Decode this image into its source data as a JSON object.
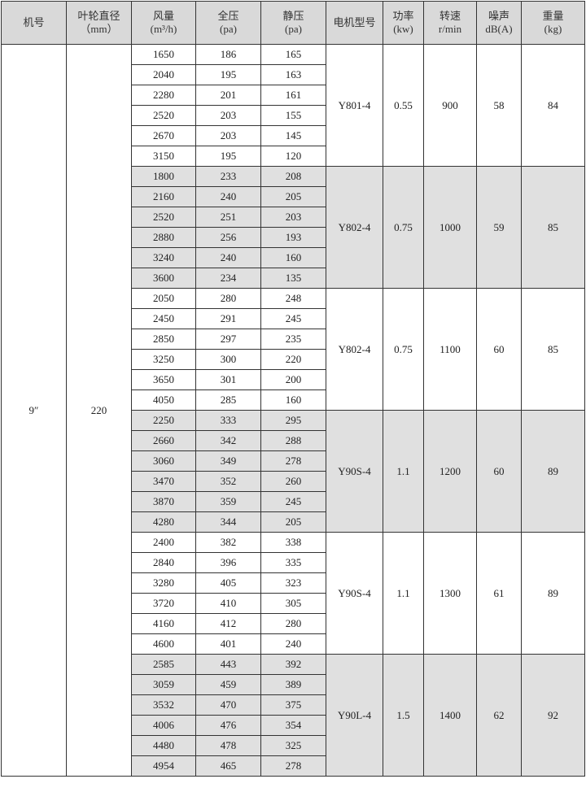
{
  "headers": [
    {
      "l1": "机号",
      "l2": ""
    },
    {
      "l1": "叶轮直径",
      "l2": "（mm）"
    },
    {
      "l1": "风量",
      "l2": "(m³/h)"
    },
    {
      "l1": "全压",
      "l2": "(pa)"
    },
    {
      "l1": "静压",
      "l2": "(pa)"
    },
    {
      "l1": "电机型号",
      "l2": ""
    },
    {
      "l1": "功率",
      "l2": "(kw)"
    },
    {
      "l1": "转速",
      "l2": "r/min"
    },
    {
      "l1": "噪声",
      "l2": "dB(A)"
    },
    {
      "l1": "重量",
      "l2": "(kg)"
    }
  ],
  "model": "9″",
  "diameter": "220",
  "group_shading": "#e0e0e0",
  "groups": [
    {
      "shaded": false,
      "motor": "Y801-4",
      "power": "0.55",
      "speed": "900",
      "noise": "58",
      "weight": "84",
      "rows": [
        [
          "1650",
          "186",
          "165"
        ],
        [
          "2040",
          "195",
          "163"
        ],
        [
          "2280",
          "201",
          "161"
        ],
        [
          "2520",
          "203",
          "155"
        ],
        [
          "2670",
          "203",
          "145"
        ],
        [
          "3150",
          "195",
          "120"
        ]
      ]
    },
    {
      "shaded": true,
      "motor": "Y802-4",
      "power": "0.75",
      "speed": "1000",
      "noise": "59",
      "weight": "85",
      "rows": [
        [
          "1800",
          "233",
          "208"
        ],
        [
          "2160",
          "240",
          "205"
        ],
        [
          "2520",
          "251",
          "203"
        ],
        [
          "2880",
          "256",
          "193"
        ],
        [
          "3240",
          "240",
          "160"
        ],
        [
          "3600",
          "234",
          "135"
        ]
      ]
    },
    {
      "shaded": false,
      "motor": "Y802-4",
      "power": "0.75",
      "speed": "1100",
      "noise": "60",
      "weight": "85",
      "rows": [
        [
          "2050",
          "280",
          "248"
        ],
        [
          "2450",
          "291",
          "245"
        ],
        [
          "2850",
          "297",
          "235"
        ],
        [
          "3250",
          "300",
          "220"
        ],
        [
          "3650",
          "301",
          "200"
        ],
        [
          "4050",
          "285",
          "160"
        ]
      ]
    },
    {
      "shaded": true,
      "motor": "Y90S-4",
      "power": "1.1",
      "speed": "1200",
      "noise": "60",
      "weight": "89",
      "rows": [
        [
          "2250",
          "333",
          "295"
        ],
        [
          "2660",
          "342",
          "288"
        ],
        [
          "3060",
          "349",
          "278"
        ],
        [
          "3470",
          "352",
          "260"
        ],
        [
          "3870",
          "359",
          "245"
        ],
        [
          "4280",
          "344",
          "205"
        ]
      ]
    },
    {
      "shaded": false,
      "motor": "Y90S-4",
      "power": "1.1",
      "speed": "1300",
      "noise": "61",
      "weight": "89",
      "rows": [
        [
          "2400",
          "382",
          "338"
        ],
        [
          "2840",
          "396",
          "335"
        ],
        [
          "3280",
          "405",
          "323"
        ],
        [
          "3720",
          "410",
          "305"
        ],
        [
          "4160",
          "412",
          "280"
        ],
        [
          "4600",
          "401",
          "240"
        ]
      ]
    },
    {
      "shaded": true,
      "motor": "Y90L-4",
      "power": "1.5",
      "speed": "1400",
      "noise": "62",
      "weight": "92",
      "rows": [
        [
          "2585",
          "443",
          "392"
        ],
        [
          "3059",
          "459",
          "389"
        ],
        [
          "3532",
          "470",
          "375"
        ],
        [
          "4006",
          "476",
          "354"
        ],
        [
          "4480",
          "478",
          "325"
        ],
        [
          "4954",
          "465",
          "278"
        ]
      ]
    }
  ]
}
